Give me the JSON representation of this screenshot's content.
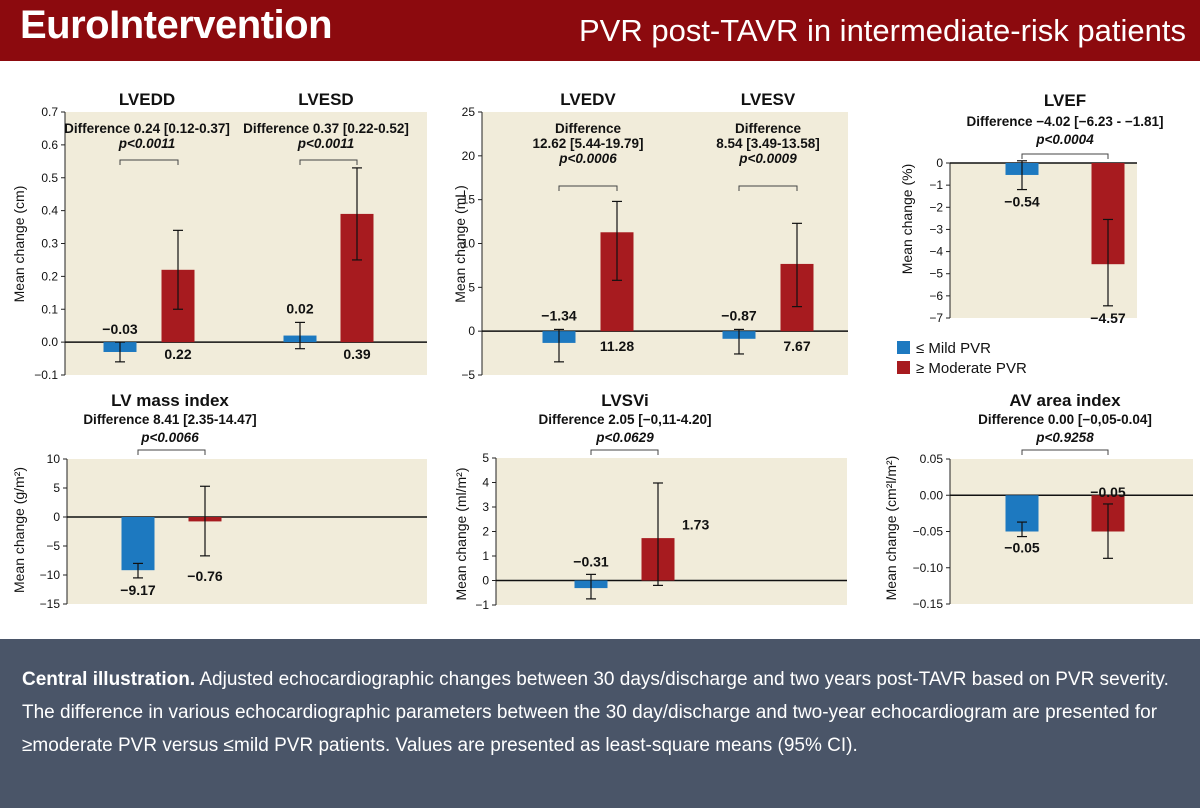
{
  "header": {
    "brand": "EuroIntervention",
    "topic": "PVR post-TAVR in intermediate-risk patients"
  },
  "colors": {
    "header_bg": "#8c0a0e",
    "panel_bg": "#f1ecda",
    "mild": "#1d79c0",
    "moderate": "#a71b1f",
    "caption_bg": "#4a5568"
  },
  "legend": {
    "items": [
      {
        "label": "≤ Mild PVR",
        "color": "#1d79c0"
      },
      {
        "label": "≥ Moderate PVR",
        "color": "#a71b1f"
      }
    ]
  },
  "caption": {
    "bold": "Central illustration.",
    "text": " Adjusted echocardiographic changes between 30 days/discharge and two years post-TAVR based on PVR severity. The difference in various echocardiographic parameters between the 30 day/discharge and two-year echocardiogram are presented for ≥moderate PVR versus ≤mild PVR patients. Values are presented as least-square means (95% CI)."
  },
  "chart_data": [
    {
      "type": "bar",
      "ylabel": "Mean change (cm)",
      "ylim": [
        -0.1,
        0.7
      ],
      "yticks": [
        "−0.1",
        "0.0",
        "0.1",
        "0.2",
        "0.3",
        "0.4",
        "0.5",
        "0.6",
        "0.7"
      ],
      "groups": [
        {
          "title": "LVEDD",
          "diff_lines": [
            "Difference 0.24 [0.12-0.37]"
          ],
          "p": "p<0.0011",
          "bars": [
            {
              "series": "≤ Mild PVR",
              "value": -0.03,
              "ci": [
                -0.06,
                0.0
              ],
              "label": "−0.03"
            },
            {
              "series": "≥ Moderate PVR",
              "value": 0.22,
              "ci": [
                0.1,
                0.34
              ],
              "label": "0.22"
            }
          ]
        },
        {
          "title": "LVESD",
          "diff_lines": [
            "Difference 0.37 [0.22-0.52]"
          ],
          "p": "p<0.0011",
          "bars": [
            {
              "series": "≤ Mild PVR",
              "value": 0.02,
              "ci": [
                -0.02,
                0.06
              ],
              "label": "0.02"
            },
            {
              "series": "≥ Moderate PVR",
              "value": 0.39,
              "ci": [
                0.25,
                0.53
              ],
              "label": "0.39"
            }
          ]
        }
      ]
    },
    {
      "type": "bar",
      "ylabel": "Mean change (mL)",
      "ylim": [
        -5,
        25
      ],
      "yticks": [
        "−5",
        "0",
        "5",
        "10",
        "15",
        "20",
        "25"
      ],
      "groups": [
        {
          "title": "LVEDV",
          "diff_lines": [
            "Difference",
            "12.62 [5.44-19.79]"
          ],
          "p": "p<0.0006",
          "bars": [
            {
              "series": "≤ Mild PVR",
              "value": -1.34,
              "ci": [
                -3.5,
                0.2
              ],
              "label": "−1.34"
            },
            {
              "series": "≥ Moderate PVR",
              "value": 11.28,
              "ci": [
                5.8,
                14.8
              ],
              "label": "11.28"
            }
          ]
        },
        {
          "title": "LVESV",
          "diff_lines": [
            "Difference",
            "8.54 [3.49-13.58]"
          ],
          "p": "p<0.0009",
          "bars": [
            {
              "series": "≤ Mild PVR",
              "value": -0.87,
              "ci": [
                -2.6,
                0.2
              ],
              "label": "−0.87"
            },
            {
              "series": "≥ Moderate PVR",
              "value": 7.67,
              "ci": [
                2.8,
                12.3
              ],
              "label": "7.67"
            }
          ]
        }
      ]
    },
    {
      "type": "bar",
      "ylabel": "Mean change (%)",
      "ylim": [
        -7,
        0
      ],
      "yticks": [
        "−7",
        "−6",
        "−5",
        "−4",
        "−3",
        "−2",
        "−1",
        "0"
      ],
      "groups": [
        {
          "title": "LVEF",
          "diff_lines": [
            "Difference −4.02 [−6.23 - −1.81]"
          ],
          "p": "p<0.0004",
          "bars": [
            {
              "series": "≤ Mild PVR",
              "value": -0.54,
              "ci": [
                -1.2,
                0.1
              ],
              "label": "−0.54"
            },
            {
              "series": "≥ Moderate PVR",
              "value": -4.57,
              "ci": [
                -6.45,
                -2.55
              ],
              "label": "−4.57"
            }
          ]
        }
      ]
    },
    {
      "type": "bar",
      "ylabel": "Mean change (g/m²)",
      "ylim": [
        -15,
        10
      ],
      "yticks": [
        "−15",
        "−10",
        "−5",
        "0",
        "5",
        "10"
      ],
      "groups": [
        {
          "title": "LV mass index",
          "diff_lines": [
            "Difference 8.41 [2.35-14.47]"
          ],
          "p": "p<0.0066",
          "bars": [
            {
              "series": "≤ Mild PVR",
              "value": -9.17,
              "ci": [
                -10.5,
                -8.0
              ],
              "label": "−9.17"
            },
            {
              "series": "≥ Moderate PVR",
              "value": -0.76,
              "ci": [
                -6.7,
                5.3
              ],
              "label": "−0.76"
            }
          ]
        }
      ]
    },
    {
      "type": "bar",
      "ylabel": "Mean change (ml/m²)",
      "ylim": [
        -1,
        5
      ],
      "yticks": [
        "−1",
        "0",
        "1",
        "2",
        "3",
        "4",
        "5"
      ],
      "groups": [
        {
          "title": "LVSVi",
          "diff_lines": [
            "Difference 2.05 [−0,11-4.20]"
          ],
          "p": "p<0.0629",
          "bars": [
            {
              "series": "≤ Mild PVR",
              "value": -0.31,
              "ci": [
                -0.75,
                0.25
              ],
              "label": "−0.31"
            },
            {
              "series": "≥ Moderate PVR",
              "value": 1.73,
              "ci": [
                -0.2,
                3.98
              ],
              "label": "1.73"
            }
          ]
        }
      ]
    },
    {
      "type": "bar",
      "ylabel": "Mean change (cm²l/m²)",
      "ylim": [
        -0.15,
        0.05
      ],
      "yticks": [
        "−0.15",
        "−0.10",
        "−0.05",
        "0.00",
        "0.05"
      ],
      "groups": [
        {
          "title": "AV area index",
          "diff_lines": [
            "Difference 0.00 [−0,05-0.04]"
          ],
          "p": "p<0.9258",
          "bars": [
            {
              "series": "≤ Mild PVR",
              "value": -0.05,
              "ci": [
                -0.057,
                -0.037
              ],
              "label": "−0.05"
            },
            {
              "series": "≥ Moderate PVR",
              "value": -0.05,
              "ci": [
                -0.087,
                -0.012
              ],
              "label": "−0.05"
            }
          ]
        }
      ]
    }
  ]
}
